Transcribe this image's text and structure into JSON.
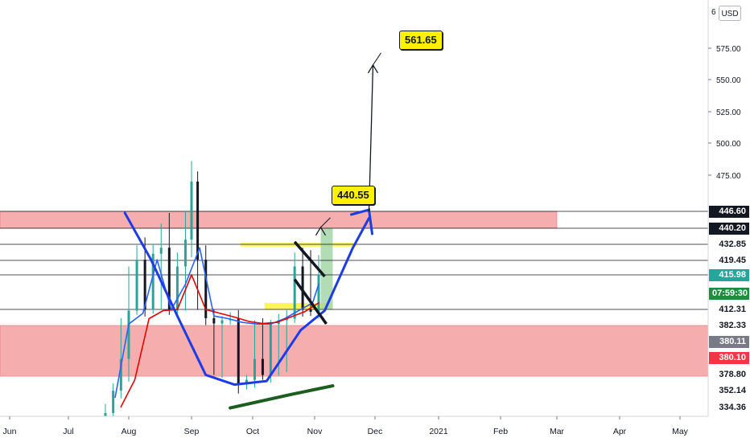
{
  "currency": "USD",
  "top_axis_cut": "6",
  "callouts": [
    {
      "text": "561.65",
      "price": 561.65
    },
    {
      "text": "440.55",
      "price": 440.55
    }
  ],
  "price_badges": [
    {
      "text": "446.60",
      "bg": "#131722",
      "fg": "#ffffff"
    },
    {
      "text": "440.20",
      "bg": "#131722",
      "fg": "#ffffff"
    },
    {
      "text": "432.85",
      "bg": "#ffffff",
      "fg": "#131722"
    },
    {
      "text": "419.45",
      "bg": "#ffffff",
      "fg": "#131722"
    },
    {
      "text": "415.98",
      "bg": "#26a69a",
      "fg": "#ffffff"
    },
    {
      "text": "07:59:30",
      "bg": "#1e8e3e",
      "fg": "#ffffff"
    },
    {
      "text": "412.31",
      "bg": "#ffffff",
      "fg": "#131722"
    },
    {
      "text": "382.33",
      "bg": "#ffffff",
      "fg": "#131722"
    },
    {
      "text": "380.11",
      "bg": "#787b86",
      "fg": "#ffffff"
    },
    {
      "text": "380.10",
      "bg": "#f23645",
      "fg": "#ffffff"
    },
    {
      "text": "378.80",
      "bg": "#ffffff",
      "fg": "#131722"
    },
    {
      "text": "352.14",
      "bg": "#ffffff",
      "fg": "#131722"
    },
    {
      "text": "334.36",
      "bg": "#ffffff",
      "fg": "#131722"
    }
  ],
  "chart_data": {
    "type": "line",
    "x_axis": {
      "ticks": [
        "Jun",
        "Jul",
        "Aug",
        "Sep",
        "Oct",
        "Nov",
        "Dec",
        "2021",
        "Feb",
        "Mar",
        "Apr",
        "May"
      ],
      "range": [
        "2020-05-20",
        "2021-05-25"
      ]
    },
    "y_axis": {
      "ticks": [
        575,
        550,
        525,
        500,
        475
      ]
    },
    "series": [
      {
        "style": "candles",
        "color_up": "#26a69a",
        "color_down": "#131722",
        "x": [
          "2020-07-20",
          "2020-07-24",
          "2020-07-28",
          "2020-08-01",
          "2020-08-05",
          "2020-08-09",
          "2020-08-13",
          "2020-08-17",
          "2020-08-21",
          "2020-08-25",
          "2020-08-29",
          "2020-09-01",
          "2020-09-04",
          "2020-09-08",
          "2020-09-12",
          "2020-09-16",
          "2020-09-20",
          "2020-09-24",
          "2020-09-28",
          "2020-10-02",
          "2020-10-06",
          "2020-10-10",
          "2020-10-14",
          "2020-10-18",
          "2020-10-22",
          "2020-10-26",
          "2020-10-30",
          "2020-11-03"
        ],
        "close": [
          330,
          352,
          380,
          410,
          420,
          412,
          425,
          430,
          410,
          418,
          435,
          470,
          420,
          396,
          386,
          392,
          395,
          362,
          370,
          380,
          378,
          385,
          392,
          395,
          418,
          412,
          408,
          416
        ]
      },
      {
        "style": "line",
        "color": "#2962ff",
        "x": [
          "2020-07-25",
          "2020-08-01",
          "2020-08-08",
          "2020-08-15",
          "2020-08-22",
          "2020-08-29",
          "2020-09-05",
          "2020-09-12",
          "2020-09-19",
          "2020-09-26",
          "2020-10-03",
          "2020-10-10",
          "2020-10-17",
          "2020-10-24",
          "2020-10-31",
          "2020-11-03"
        ],
        "y": [
          345,
          385,
          405,
          420,
          412,
          415,
          430,
          400,
          395,
          388,
          385,
          385,
          395,
          410,
          413,
          415
        ]
      },
      {
        "style": "line",
        "color": "#e00000",
        "x": [
          "2020-07-28",
          "2020-08-04",
          "2020-08-11",
          "2020-08-18",
          "2020-08-25",
          "2020-09-01",
          "2020-09-08",
          "2020-09-15",
          "2020-09-22",
          "2020-09-29",
          "2020-10-06",
          "2020-10-13",
          "2020-10-20",
          "2020-10-27",
          "2020-11-03"
        ],
        "y": [
          335,
          370,
          395,
          410,
          412,
          416,
          412,
          405,
          398,
          390,
          386,
          388,
          398,
          408,
          413
        ]
      },
      {
        "style": "line",
        "color": "#1b5e20",
        "x": [
          "2020-09-20",
          "2020-10-20",
          "2020-11-10"
        ],
        "y": [
          334,
          348,
          360
        ]
      }
    ],
    "zones": [
      {
        "color": "#f4a9a9",
        "y_range": [
          440.2,
          446.6
        ],
        "x_range": [
          "2020-05-20",
          "2021-03-01"
        ]
      },
      {
        "color": "#f4a9a9",
        "y_range": [
          376,
          382.33
        ],
        "x_range": [
          "2020-05-20",
          "2021-05-25"
        ]
      },
      {
        "color": "#fff44f",
        "y_range": [
          431,
          433.5
        ],
        "x_range": [
          "2020-09-25",
          "2020-11-22"
        ]
      },
      {
        "color": "#fff44f",
        "y_range": [
          411.6,
          413
        ],
        "x_range": [
          "2020-10-07",
          "2020-11-10"
        ]
      },
      {
        "color": "#a5d6a7",
        "y_range": [
          412.31,
          440.55
        ],
        "x_range": [
          "2020-11-04",
          "2020-11-10"
        ]
      }
    ],
    "levels": [
      446.6,
      440.2,
      432.85,
      419.45,
      415.98,
      412.31
    ],
    "drawings": [
      {
        "type": "cup-curve",
        "color": "#1e3ce6"
      },
      {
        "type": "channel",
        "color": "#131722"
      },
      {
        "type": "target-arrow",
        "color": "#131722",
        "target": 561.65
      }
    ]
  }
}
